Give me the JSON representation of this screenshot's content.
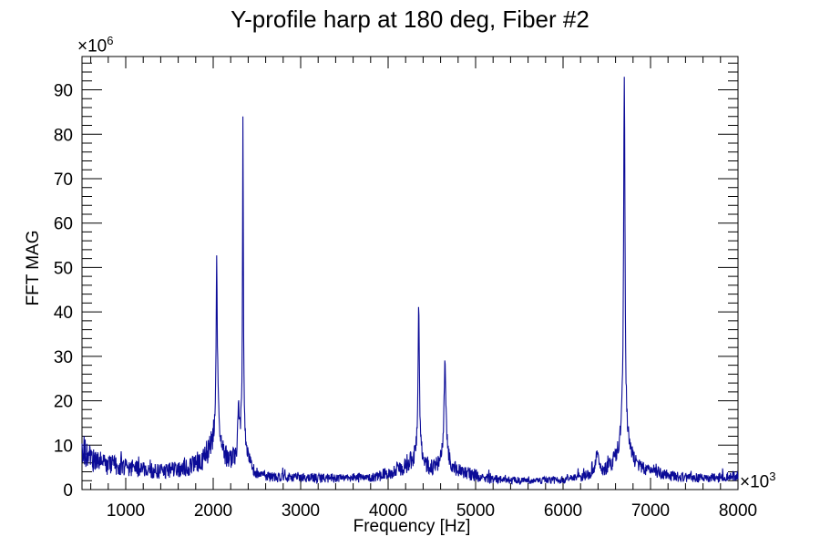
{
  "chart_data": {
    "type": "line",
    "title": "Y-profile harp at 180 deg, Fiber #2",
    "xlabel": "Frequency [Hz]",
    "ylabel": "FFT MAG",
    "x_axis_multiplier": {
      "base": "×10",
      "exp": "3"
    },
    "y_axis_multiplier": {
      "base": "×10",
      "exp": "6"
    },
    "xlim": [
      500,
      8000
    ],
    "ylim": [
      0,
      97.5
    ],
    "x_major_ticks": [
      1000,
      2000,
      3000,
      4000,
      5000,
      6000,
      7000,
      8000
    ],
    "x_tick_labels": [
      "1000",
      "2000",
      "3000",
      "4000",
      "5000",
      "6000",
      "7000",
      "8000"
    ],
    "x_minor_step": 200,
    "y_major_ticks": [
      0,
      10,
      20,
      30,
      40,
      50,
      60,
      70,
      80,
      90
    ],
    "y_tick_labels": [
      "0",
      "10",
      "20",
      "30",
      "40",
      "50",
      "60",
      "70",
      "80",
      "90"
    ],
    "y_minor_step": 2,
    "grid": false,
    "legend": null,
    "line_color": "#0b0b97",
    "axis_color": "#000000",
    "peaks": [
      {
        "center_hz": 2040,
        "height_e6": 50,
        "narrow": {
          "h": 36,
          "w": 9
        },
        "broad": {
          "h": 7,
          "w": 40
        }
      },
      {
        "center_hz": 2290,
        "height_e6": 18,
        "narrow": {
          "h": 10,
          "w": 12
        },
        "broad": {
          "h": 0,
          "w": 1
        }
      },
      {
        "center_hz": 2340,
        "height_e6": 81,
        "narrow": {
          "h": 69,
          "w": 6
        },
        "broad": {
          "h": 7,
          "w": 30
        }
      },
      {
        "center_hz": 4350,
        "height_e6": 43,
        "narrow": {
          "h": 34,
          "w": 8
        },
        "broad": {
          "h": 4,
          "w": 50
        }
      },
      {
        "center_hz": 4650,
        "height_e6": 28,
        "narrow": {
          "h": 20,
          "w": 12
        },
        "broad": {
          "h": 4,
          "w": 45
        }
      },
      {
        "center_hz": 6390,
        "height_e6": 8,
        "narrow": {
          "h": 4.5,
          "w": 25
        },
        "broad": {
          "h": 0,
          "w": 1
        }
      },
      {
        "center_hz": 6700,
        "height_e6": 93,
        "narrow": {
          "h": 81,
          "w": 9
        },
        "broad": {
          "h": 8,
          "w": 70
        }
      },
      {
        "center_hz": 7010,
        "height_e6": 4,
        "narrow": {
          "h": 1.2,
          "w": 50
        },
        "broad": {
          "h": 0,
          "w": 1
        }
      }
    ],
    "noise_floor_e6": [
      [
        500,
        9.5
      ],
      [
        560,
        7.5
      ],
      [
        650,
        6.5
      ],
      [
        800,
        5.5
      ],
      [
        1000,
        5.0
      ],
      [
        1200,
        4.4
      ],
      [
        1400,
        4.1
      ],
      [
        1600,
        4.4
      ],
      [
        1750,
        5.0
      ],
      [
        1850,
        6.0
      ],
      [
        1950,
        7.5
      ],
      [
        2050,
        7.0
      ],
      [
        2150,
        6.2
      ],
      [
        2250,
        5.8
      ],
      [
        2400,
        5.0
      ],
      [
        2450,
        3.8
      ],
      [
        2550,
        3.0
      ],
      [
        2700,
        2.6
      ],
      [
        3000,
        2.6
      ],
      [
        3500,
        2.4
      ],
      [
        3900,
        3.0
      ],
      [
        4100,
        4.2
      ],
      [
        4250,
        5.5
      ],
      [
        4450,
        4.0
      ],
      [
        4550,
        4.2
      ],
      [
        4750,
        4.2
      ],
      [
        4850,
        3.8
      ],
      [
        5000,
        3.0
      ],
      [
        5200,
        2.2
      ],
      [
        5600,
        1.9
      ],
      [
        6000,
        2.1
      ],
      [
        6250,
        2.6
      ],
      [
        6450,
        3.2
      ],
      [
        6550,
        4.2
      ],
      [
        6800,
        4.5
      ],
      [
        6950,
        3.4
      ],
      [
        7100,
        3.2
      ],
      [
        7300,
        2.7
      ],
      [
        7600,
        2.5
      ],
      [
        8000,
        2.8
      ]
    ],
    "noise": {
      "seed": 1234567,
      "rel": 0.42,
      "spike_prob": 0.05,
      "spike_scale": 0.55
    },
    "sample_step_hz": 4
  }
}
